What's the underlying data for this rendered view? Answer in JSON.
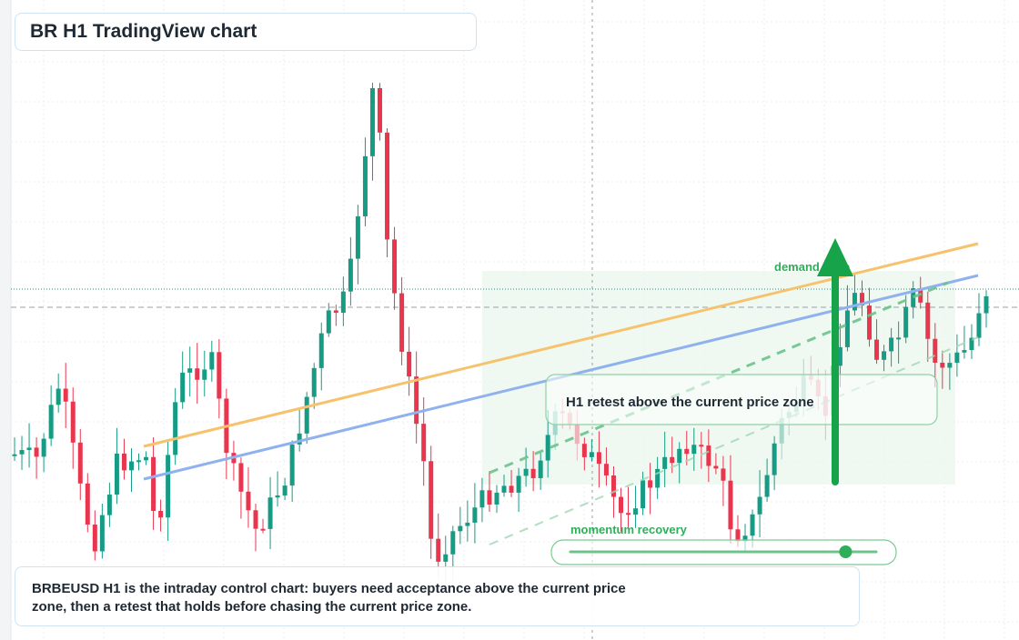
{
  "chart_data": {
    "type": "candlestick",
    "title": "BR H1 TradingView chart",
    "symbol": "BRBEUSD",
    "timeframe": "H1",
    "candle_count": 134,
    "price_range": [
      0,
      100
    ],
    "grid": true,
    "annotations": {
      "retest_label": "H1 retest above the current price zone",
      "momentum_label": "momentum recovery",
      "demand_label": "demand zone"
    },
    "indicators": [
      {
        "name": "upper-trendline",
        "color": "#f6c26b"
      },
      {
        "name": "lower-trendline",
        "color": "#8fb1ee"
      }
    ],
    "momentum_progress": 0.9,
    "colors": {
      "bull": "#169b84",
      "bear": "#e8364f",
      "zone": "#ecf8ef",
      "arrow": "#16a34a"
    }
  },
  "note": "BRBEUSD H1 is the intraday control chart: buyers need acceptance above the current price zone, then a retest that holds before chasing the current price zone."
}
